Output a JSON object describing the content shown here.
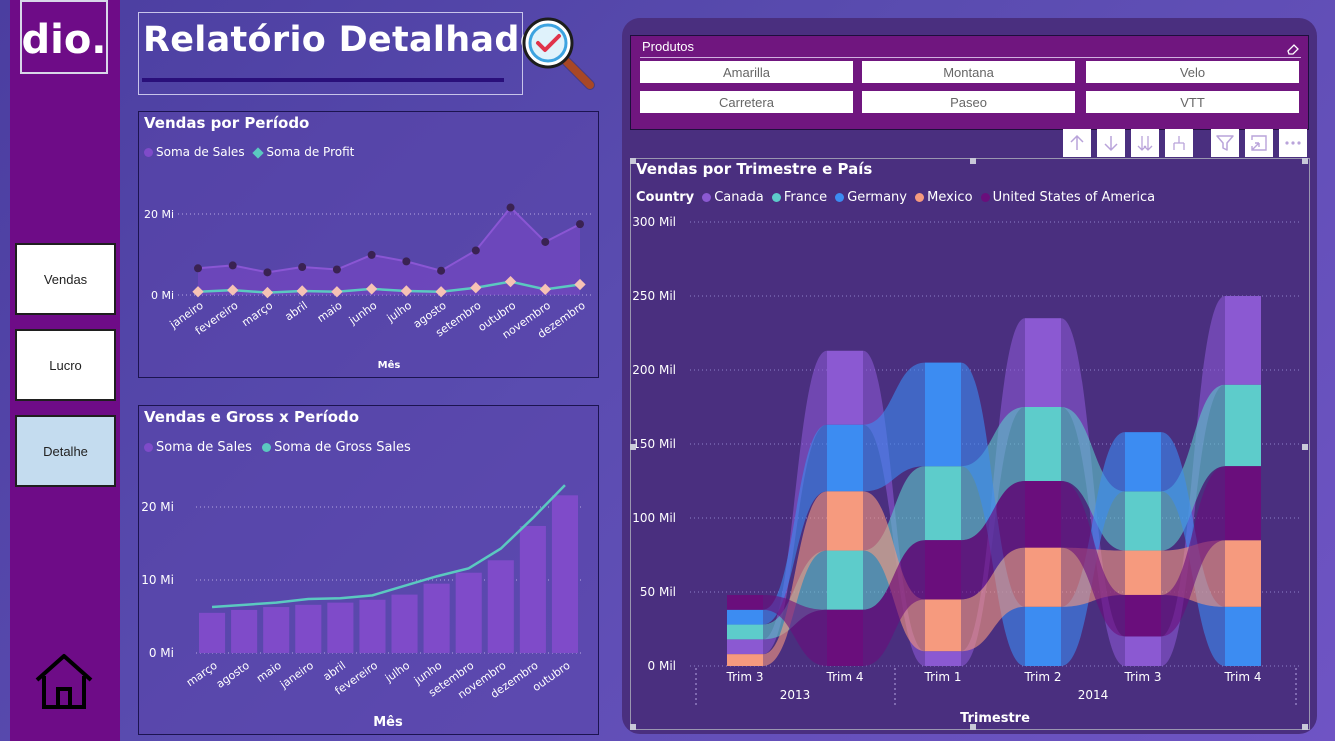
{
  "header": {
    "title": "Relatório Detalhado"
  },
  "sidebar": {
    "logo_text": "dio.",
    "buttons": [
      {
        "label": "Vendas",
        "active": false
      },
      {
        "label": "Lucro",
        "active": false
      },
      {
        "label": "Detalhe",
        "active": true
      }
    ]
  },
  "slicer": {
    "title": "Produtos",
    "items": [
      "Amarilla",
      "Montana",
      "Velo",
      "Carretera",
      "Paseo",
      "VTT"
    ]
  },
  "colors": {
    "purple_series": "#7f4bc9",
    "teal_series": "#5bc9c0",
    "peach_marker": "#f6c2b5",
    "dark_marker": "#3a2252",
    "canada": "#8b59d2",
    "france": "#5dcccb",
    "germany": "#3c8cf2",
    "mexico": "#f69a7e",
    "usa": "#6a0e7c"
  },
  "chart_data": [
    {
      "type": "line",
      "title": "Vendas por Período",
      "xlabel": "Mês",
      "ylabel": "",
      "legend": "top-left",
      "categories": [
        "janeiro",
        "fevereiro",
        "março",
        "abril",
        "maio",
        "junho",
        "julho",
        "agosto",
        "setembro",
        "outubro",
        "novembro",
        "dezembro"
      ],
      "y_ticks": [
        "0 Mi",
        "20 Mi"
      ],
      "ylim": [
        0,
        25
      ],
      "series": [
        {
          "name": "Soma de  Sales",
          "values": [
            6.6,
            7.3,
            5.6,
            6.9,
            6.3,
            9.9,
            8.3,
            6.0,
            11.0,
            21.6,
            13.1,
            17.5
          ]
        },
        {
          "name": "Soma de Profit",
          "values": [
            0.8,
            1.2,
            0.6,
            1.0,
            0.8,
            1.5,
            1.0,
            0.8,
            1.8,
            3.3,
            1.4,
            2.6
          ]
        }
      ]
    },
    {
      "type": "bar",
      "title": "Vendas e Gross x Período",
      "xlabel": "Mês",
      "ylabel": "",
      "legend": "top-left",
      "categories": [
        "março",
        "agosto",
        "maio",
        "janeiro",
        "abril",
        "fevereiro",
        "julho",
        "junho",
        "setembro",
        "novembro",
        "dezembro",
        "outubro"
      ],
      "y_ticks": [
        "0 Mi",
        "10 Mi",
        "20 Mi"
      ],
      "ylim": [
        0,
        25
      ],
      "series": [
        {
          "name": "Soma de  Sales",
          "values": [
            5.5,
            5.9,
            6.3,
            6.6,
            6.9,
            7.3,
            8.0,
            9.5,
            11.0,
            12.7,
            17.4,
            21.6
          ]
        },
        {
          "name": "Soma de Gross Sales",
          "values": [
            6.3,
            6.6,
            6.9,
            7.4,
            7.5,
            7.9,
            9.2,
            10.5,
            11.6,
            14.3,
            18.5,
            23.0
          ]
        }
      ]
    },
    {
      "type": "ribbon",
      "title": "Vendas por Trimestre e País",
      "legend_title": "Country",
      "legend": "top-left",
      "xlabel": "Trimestre",
      "categories": [
        "Trim 3",
        "Trim 4",
        "Trim 1",
        "Trim 2",
        "Trim 3",
        "Trim 4"
      ],
      "years": [
        {
          "label": "2013",
          "span": [
            0,
            1
          ]
        },
        {
          "label": "2014",
          "span": [
            2,
            5
          ]
        }
      ],
      "y_ticks": [
        "0 Mil",
        "50 Mil",
        "100 Mil",
        "150 Mil",
        "200 Mil",
        "250 Mil",
        "300 Mil"
      ],
      "ylim": [
        0,
        300
      ],
      "series": [
        {
          "name": "Canada",
          "values": [
            10,
            50,
            10,
            60,
            20,
            60
          ]
        },
        {
          "name": "France",
          "values": [
            10,
            40,
            50,
            50,
            40,
            55
          ]
        },
        {
          "name": "Germany",
          "values": [
            10,
            45,
            70,
            40,
            40,
            40
          ]
        },
        {
          "name": "Mexico",
          "values": [
            8,
            40,
            35,
            40,
            30,
            45
          ]
        },
        {
          "name": "United States of America",
          "values": [
            10,
            38,
            40,
            45,
            28,
            50
          ]
        }
      ]
    }
  ]
}
